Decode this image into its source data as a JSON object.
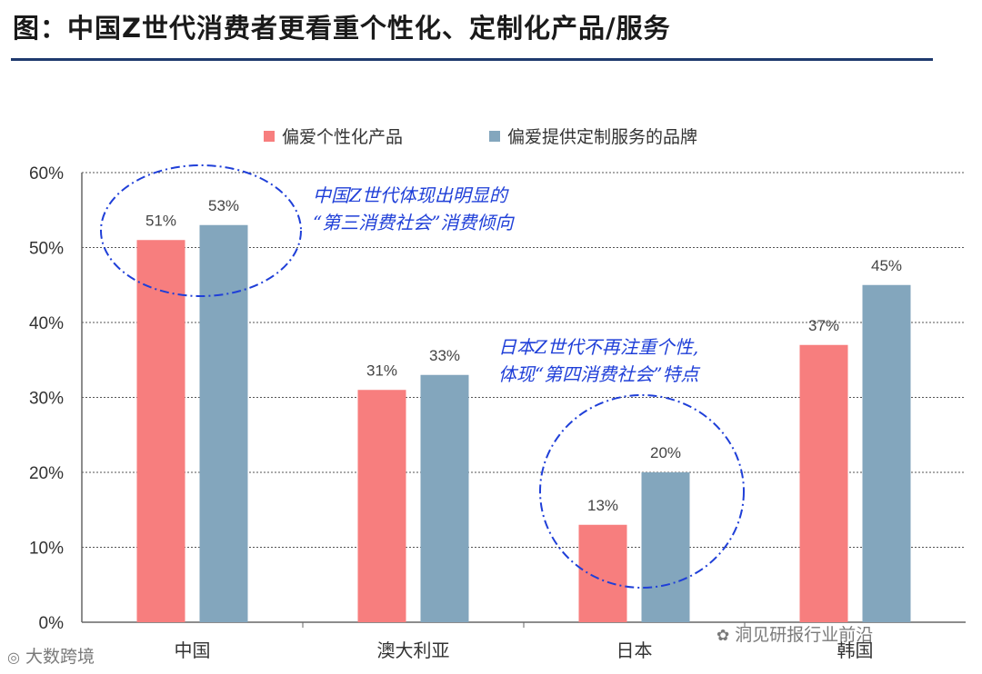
{
  "title": "图：中国Z世代消费者更看重个性化、定制化产品/服务",
  "chart_data": {
    "type": "bar",
    "categories": [
      "中国",
      "澳大利亚",
      "日本",
      "韩国"
    ],
    "series": [
      {
        "name": "偏爱个性化产品",
        "values": [
          51,
          31,
          13,
          37
        ],
        "color": "#f77e7e"
      },
      {
        "name": "偏爱提供定制服务的品牌",
        "values": [
          53,
          33,
          20,
          45
        ],
        "color": "#83a6bd"
      }
    ],
    "data_labels": [
      [
        "51%",
        "31%",
        "13%",
        "37%"
      ],
      [
        "53%",
        "33%",
        "20%",
        "45%"
      ]
    ],
    "ylim": [
      0,
      60
    ],
    "yticks": [
      "0%",
      "10%",
      "20%",
      "30%",
      "40%",
      "50%",
      "60%"
    ],
    "grid": true,
    "legend_position": "top-center"
  },
  "annotations": [
    {
      "lines": [
        "中国Z世代体现出明显的",
        "“第三消费社会”消费倾向"
      ]
    },
    {
      "lines": [
        "日本Z世代不再注重个性,",
        "体现“第四消费社会”特点"
      ]
    }
  ],
  "watermarks": {
    "left": "大数跨境",
    "right": "洞见研报行业前沿"
  }
}
